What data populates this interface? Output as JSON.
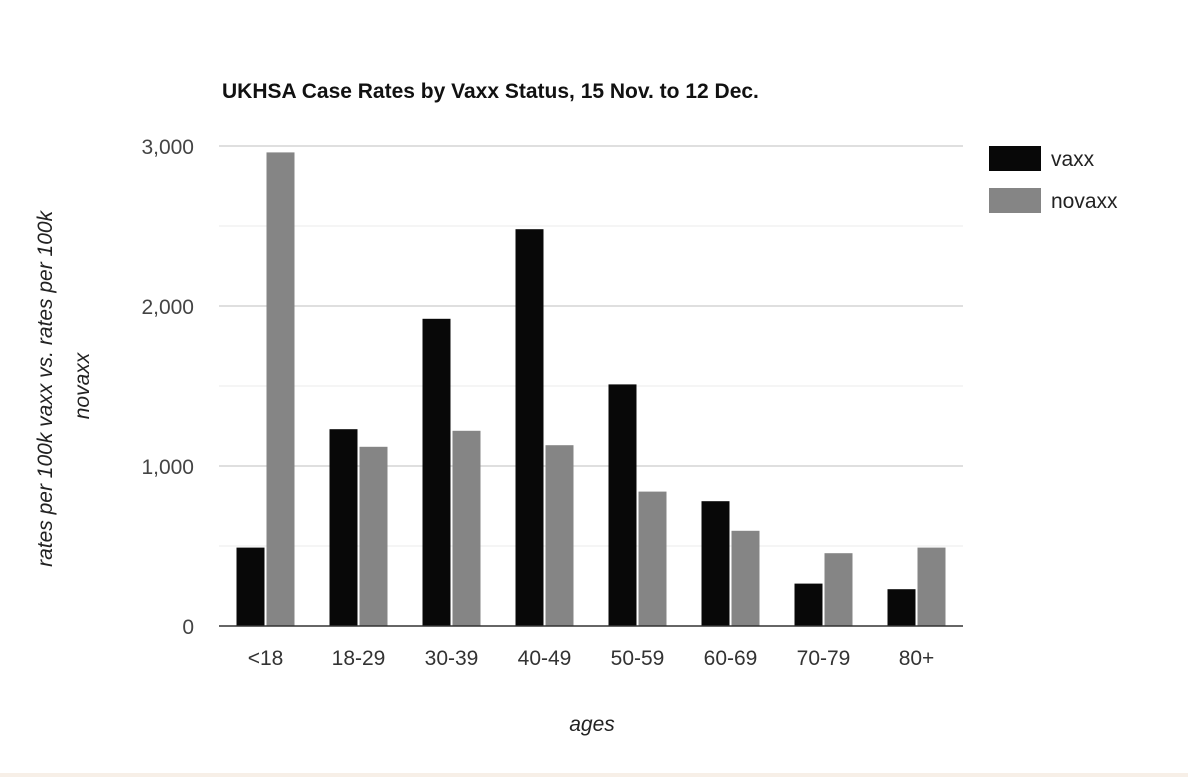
{
  "chart_data": {
    "type": "bar",
    "title": "UKHSA Case Rates by Vaxx Status, 15 Nov. to 12 Dec.",
    "xlabel": "ages",
    "ylabel_lines": [
      "rates per 100k vaxx vs. rates per 100k",
      "novaxx"
    ],
    "categories": [
      "<18",
      "18-29",
      "30-39",
      "40-49",
      "50-59",
      "60-69",
      "70-79",
      "80+"
    ],
    "series": [
      {
        "name": "vaxx",
        "color": "#080808",
        "values": [
          490,
          1230,
          1920,
          2480,
          1510,
          780,
          265,
          230
        ]
      },
      {
        "name": "novaxx",
        "color": "#858585",
        "values": [
          2960,
          1120,
          1220,
          1130,
          840,
          595,
          455,
          490
        ]
      }
    ],
    "ylim": [
      0,
      3000
    ],
    "yticks": [
      0,
      1000,
      2000,
      3000
    ],
    "ytick_labels": [
      "0",
      "1,000",
      "2,000",
      "3,000"
    ],
    "grid": true,
    "minor_grid": true,
    "legend_position": "right"
  }
}
